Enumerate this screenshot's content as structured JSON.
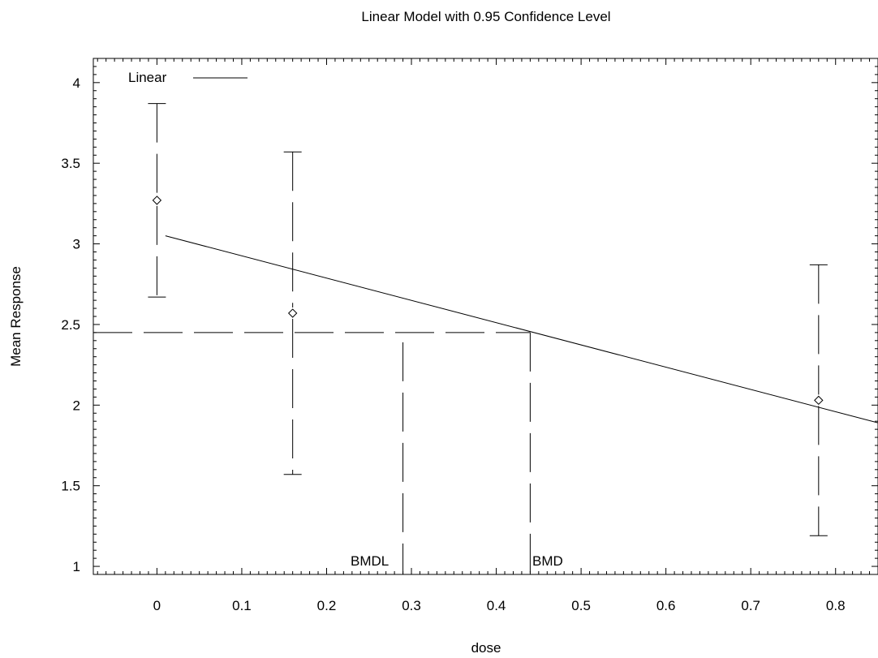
{
  "chart_data": {
    "type": "scatter",
    "title": "Linear Model with 0.95 Confidence Level",
    "xlabel": "dose",
    "ylabel": "Mean Response",
    "xlim": [
      -0.075,
      0.85
    ],
    "ylim": [
      0.95,
      4.15
    ],
    "x_ticks": [
      "0",
      "0.1",
      "0.2",
      "0.3",
      "0.4",
      "0.5",
      "0.6",
      "0.7",
      "0.8"
    ],
    "y_ticks": [
      "1",
      "1.5",
      "2",
      "2.5",
      "3",
      "3.5",
      "4"
    ],
    "legend": {
      "label": "Linear",
      "placement": "top-left"
    },
    "observations": [
      {
        "x": 0,
        "mean": 3.27,
        "lower": 2.67,
        "upper": 3.87
      },
      {
        "x": 0.16,
        "mean": 2.57,
        "lower": 1.57,
        "upper": 3.57
      },
      {
        "x": 0.78,
        "mean": 2.03,
        "lower": 1.19,
        "upper": 2.87
      }
    ],
    "fit_line": {
      "x": [
        0.01,
        0.85
      ],
      "y": [
        3.05,
        1.89
      ]
    },
    "bmr_level": 2.45,
    "bmdl": {
      "label": "BMDL",
      "x": 0.29
    },
    "bmd": {
      "label": "BMD",
      "x": 0.44
    },
    "grid": false
  }
}
